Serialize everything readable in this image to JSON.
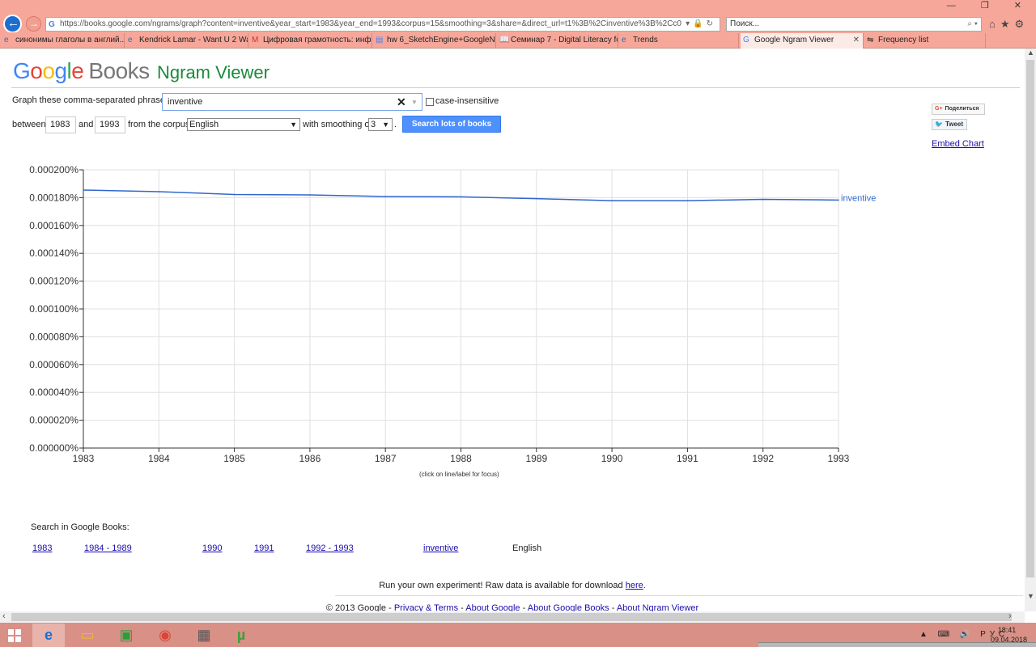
{
  "browser": {
    "url": "https://books.google.com/ngrams/graph?content=inventive&year_start=1983&year_end=1993&corpus=15&smoothing=3&share=&direct_url=t1%3B%2Cinventive%3B%2Cc0",
    "search_placeholder": "Поиск...",
    "tabs": [
      {
        "label": "синонимы глаголы в англий...",
        "icon": "ie-icon"
      },
      {
        "label": "Kendrick Lamar - Want U 2 Wa...",
        "icon": "ie-icon"
      },
      {
        "label": "Цифровая грамотность: инф...",
        "icon": "gmail-icon"
      },
      {
        "label": "hw 6_SketchEngine+GoogleNg...",
        "icon": "docs-icon"
      },
      {
        "label": "Семинар 7 - Digital Literacy fo...",
        "icon": "book-icon"
      },
      {
        "label": "Trends",
        "icon": "ie-icon"
      },
      {
        "label": "Google Ngram Viewer",
        "icon": "google-icon",
        "active": true
      },
      {
        "label": "Frequency list",
        "icon": "ngram-icon"
      }
    ]
  },
  "header": {
    "logo_google": "Google",
    "logo_books": "Books",
    "app_name": "Ngram Viewer"
  },
  "form": {
    "phrase_label": "Graph these comma-separated phrases:",
    "phrase_value": "inventive",
    "case_insensitive_label": "case-insensitive",
    "case_insensitive_checked": false,
    "between_label": "between",
    "year_start": "1983",
    "and_label": "and",
    "year_end": "1993",
    "corpus_label": "from the corpus",
    "corpus_value": "English",
    "smoothing_label": "with smoothing of",
    "smoothing_value": "3",
    "period": ".",
    "search_button": "Search lots of books"
  },
  "share": {
    "share_label": "Поделиться",
    "share_prefix": "G+",
    "tweet_label": "Tweet",
    "embed_label": "Embed Chart"
  },
  "chart_data": {
    "type": "line",
    "x": [
      1983,
      1984,
      1985,
      1986,
      1987,
      1988,
      1989,
      1990,
      1991,
      1992,
      1993
    ],
    "series": [
      {
        "name": "inventive",
        "color": "#3366cc",
        "values": [
          0.0001855,
          0.0001843,
          0.0001823,
          0.000182,
          0.0001808,
          0.0001806,
          0.0001793,
          0.0001778,
          0.0001778,
          0.0001788,
          0.0001783
        ]
      }
    ],
    "ylim": [
      0,
      0.0002
    ],
    "y_ticks": [
      "0.000000%",
      "0.000020%",
      "0.000040%",
      "0.000060%",
      "0.000080%",
      "0.000100%",
      "0.000120%",
      "0.000140%",
      "0.000160%",
      "0.000180%",
      "0.000200%"
    ],
    "x_ticks": [
      "1983",
      "1984",
      "1985",
      "1986",
      "1987",
      "1988",
      "1989",
      "1990",
      "1991",
      "1992",
      "1993"
    ],
    "grid": true,
    "hint": "(click on line/label for focus)"
  },
  "search_in_books": {
    "label": "Search in Google Books:",
    "links": [
      "1983",
      "1984 - 1989",
      "1990",
      "1991",
      "1992 - 1993",
      "inventive"
    ],
    "corpus": "English"
  },
  "footer": {
    "raw_text": "Run your own experiment! Raw data is available for download ",
    "raw_link": "here",
    "raw_end": ".",
    "copyright": "© 2013 Google",
    "sep": " - ",
    "links": [
      "Privacy & Terms",
      "About Google",
      "About Google Books",
      "About Ngram Viewer"
    ]
  },
  "taskbar": {
    "time": "18:41",
    "date": "09.04.2018",
    "lang": "РУС"
  }
}
